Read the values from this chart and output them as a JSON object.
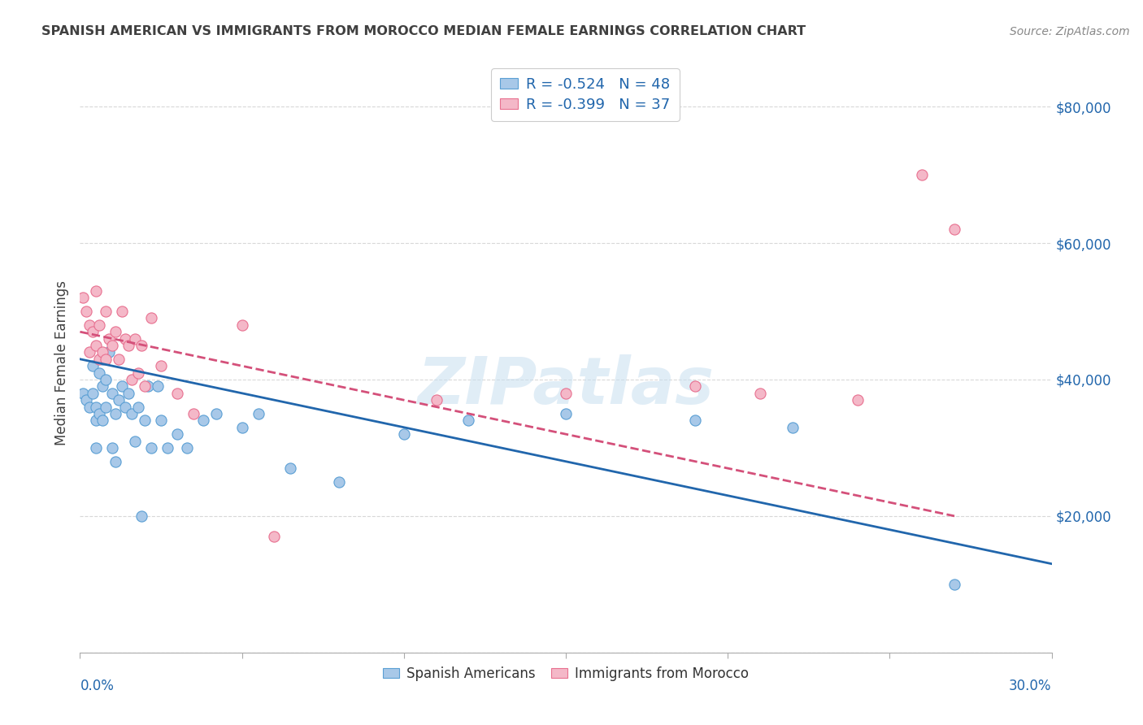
{
  "title": "SPANISH AMERICAN VS IMMIGRANTS FROM MOROCCO MEDIAN FEMALE EARNINGS CORRELATION CHART",
  "source": "Source: ZipAtlas.com",
  "ylabel": "Median Female Earnings",
  "yticks": [
    0,
    20000,
    40000,
    60000,
    80000
  ],
  "ytick_labels": [
    "",
    "$20,000",
    "$40,000",
    "$60,000",
    "$80,000"
  ],
  "xmin": 0.0,
  "xmax": 0.3,
  "ymin": 0,
  "ymax": 85000,
  "legend_r1": "-0.524",
  "legend_n1": "48",
  "legend_r2": "-0.399",
  "legend_n2": "37",
  "color_blue_fill": "#a8c8e8",
  "color_blue_edge": "#5a9fd4",
  "color_pink_fill": "#f4b8c8",
  "color_pink_edge": "#e87090",
  "color_blue_line": "#2166ac",
  "color_pink_line": "#d4507a",
  "watermark_color": "#c8dff0",
  "legend_label1": "Spanish Americans",
  "legend_label2": "Immigrants from Morocco",
  "blue_scatter_x": [
    0.001,
    0.002,
    0.003,
    0.004,
    0.004,
    0.005,
    0.005,
    0.005,
    0.006,
    0.006,
    0.007,
    0.007,
    0.007,
    0.008,
    0.008,
    0.009,
    0.01,
    0.01,
    0.011,
    0.011,
    0.012,
    0.013,
    0.014,
    0.015,
    0.016,
    0.017,
    0.018,
    0.019,
    0.02,
    0.021,
    0.022,
    0.024,
    0.025,
    0.027,
    0.03,
    0.033,
    0.038,
    0.042,
    0.05,
    0.055,
    0.065,
    0.08,
    0.1,
    0.12,
    0.15,
    0.19,
    0.22,
    0.27
  ],
  "blue_scatter_y": [
    38000,
    37000,
    36000,
    42000,
    38000,
    36000,
    34000,
    30000,
    41000,
    35000,
    43000,
    39000,
    34000,
    40000,
    36000,
    44000,
    38000,
    30000,
    35000,
    28000,
    37000,
    39000,
    36000,
    38000,
    35000,
    31000,
    36000,
    20000,
    34000,
    39000,
    30000,
    39000,
    34000,
    30000,
    32000,
    30000,
    34000,
    35000,
    33000,
    35000,
    27000,
    25000,
    32000,
    34000,
    35000,
    34000,
    33000,
    10000
  ],
  "pink_scatter_x": [
    0.001,
    0.002,
    0.003,
    0.003,
    0.004,
    0.005,
    0.005,
    0.006,
    0.006,
    0.007,
    0.008,
    0.008,
    0.009,
    0.01,
    0.011,
    0.012,
    0.013,
    0.014,
    0.015,
    0.016,
    0.017,
    0.018,
    0.019,
    0.02,
    0.022,
    0.025,
    0.03,
    0.035,
    0.05,
    0.06,
    0.11,
    0.15,
    0.19,
    0.21,
    0.24,
    0.26,
    0.27
  ],
  "pink_scatter_y": [
    52000,
    50000,
    48000,
    44000,
    47000,
    53000,
    45000,
    48000,
    43000,
    44000,
    50000,
    43000,
    46000,
    45000,
    47000,
    43000,
    50000,
    46000,
    45000,
    40000,
    46000,
    41000,
    45000,
    39000,
    49000,
    42000,
    38000,
    35000,
    48000,
    17000,
    37000,
    38000,
    39000,
    38000,
    37000,
    70000,
    62000
  ],
  "blue_line_x": [
    0.0,
    0.3
  ],
  "blue_line_y": [
    43000,
    13000
  ],
  "pink_line_x": [
    0.0,
    0.27
  ],
  "pink_line_y": [
    47000,
    20000
  ],
  "background_color": "#ffffff",
  "grid_color": "#d8d8d8",
  "title_color": "#404040",
  "source_color": "#888888",
  "axis_label_color": "#404040",
  "tick_label_color": "#2166ac"
}
